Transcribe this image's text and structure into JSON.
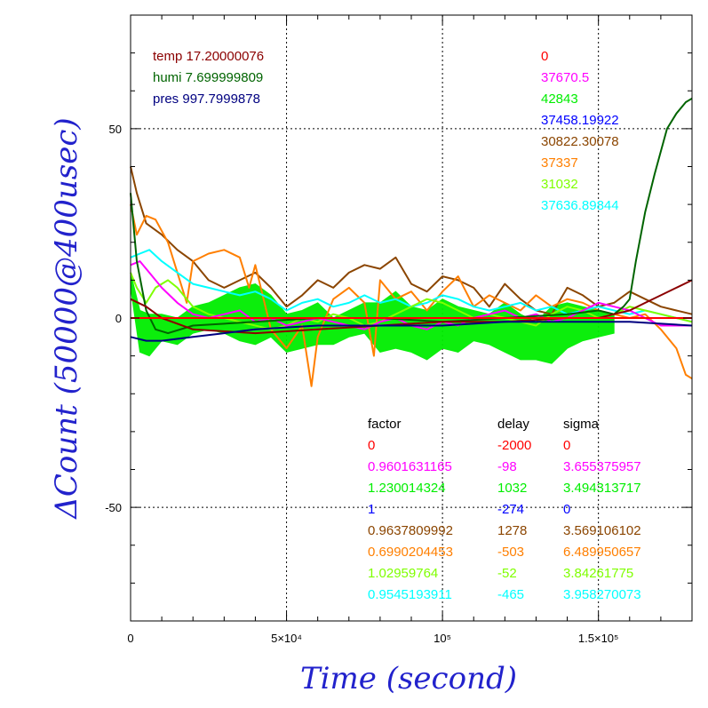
{
  "chart_data": {
    "type": "line",
    "xlabel": "Time (second)",
    "ylabel": "ΔCount (50000@400usec)",
    "xlim": [
      0,
      180000
    ],
    "ylim": [
      -80,
      80
    ],
    "x_ticks": [
      {
        "value": 0,
        "label": "0"
      },
      {
        "value": 50000,
        "label": "5×10⁴"
      },
      {
        "value": 100000,
        "label": "10⁵"
      },
      {
        "value": 150000,
        "label": "1.5×10⁵"
      }
    ],
    "y_ticks": [
      {
        "value": 50,
        "label": "50"
      },
      {
        "value": 0,
        "label": "0"
      },
      {
        "value": -50,
        "label": "-50"
      }
    ],
    "grid": true,
    "env_legend": [
      {
        "text": "temp 17.20000076",
        "color": "#8b0000"
      },
      {
        "text": "humi 7.699999809",
        "color": "#006400"
      },
      {
        "text": "pres 997.7999878",
        "color": "#000080"
      }
    ],
    "series_values": [
      {
        "text": "0",
        "color": "#ff0000"
      },
      {
        "text": "37670.5",
        "color": "#ff00ff"
      },
      {
        "text": "42843",
        "color": "#00ee00"
      },
      {
        "text": "37458.19922",
        "color": "#0000ff"
      },
      {
        "text": "30822.30078",
        "color": "#8b4500"
      },
      {
        "text": "37337",
        "color": "#ff7f00"
      },
      {
        "text": "31032",
        "color": "#7fff00"
      },
      {
        "text": "37636.89844",
        "color": "#00ffff"
      }
    ],
    "table": {
      "headers": [
        "factor",
        "delay",
        "sigma"
      ],
      "rows": [
        {
          "factor": "0",
          "delay": "-2000",
          "sigma": "0",
          "color": "#ff0000"
        },
        {
          "factor": "0.9601631165",
          "delay": "-98",
          "sigma": "3.655375957",
          "color": "#ff00ff"
        },
        {
          "factor": "1.230014324",
          "delay": "1032",
          "sigma": "3.494313717",
          "color": "#00ee00"
        },
        {
          "factor": "1",
          "delay": "-274",
          "sigma": "0",
          "color": "#0000ff"
        },
        {
          "factor": "0.9637809992",
          "delay": "1278",
          "sigma": "3.569106102",
          "color": "#8b4500"
        },
        {
          "factor": "0.6990204453",
          "delay": "-503",
          "sigma": "6.489950657",
          "color": "#ff7f00"
        },
        {
          "factor": "1.02959764",
          "delay": "-52",
          "sigma": "3.84261775",
          "color": "#7fff00"
        },
        {
          "factor": "0.9545193911",
          "delay": "-465",
          "sigma": "3.958270073",
          "color": "#00ffff"
        }
      ]
    },
    "series": [
      {
        "color": "#8b4500",
        "x": [
          0,
          2000,
          5000,
          10000,
          15000,
          20000,
          25000,
          30000,
          35000,
          40000,
          45000,
          50000,
          55000,
          60000,
          65000,
          70000,
          75000,
          80000,
          85000,
          90000,
          95000,
          100000,
          105000,
          110000,
          115000,
          120000,
          125000,
          130000,
          135000,
          140000,
          145000,
          150000,
          155000,
          160000,
          165000,
          170000,
          175000,
          180000
        ],
        "y": [
          40,
          33,
          25,
          22,
          18,
          15,
          10,
          8,
          10,
          12,
          8,
          3,
          6,
          10,
          8,
          12,
          14,
          13,
          16,
          9,
          7,
          11,
          10,
          8,
          3,
          9,
          5,
          2,
          1,
          8,
          6,
          3,
          4,
          7,
          5,
          3,
          2,
          1
        ]
      },
      {
        "color": "#ff7f00",
        "x": [
          0,
          2000,
          5000,
          8000,
          12000,
          15000,
          18000,
          20000,
          25000,
          30000,
          35000,
          38000,
          40000,
          45000,
          50000,
          55000,
          58000,
          60000,
          65000,
          70000,
          75000,
          78000,
          80000,
          85000,
          90000,
          95000,
          100000,
          105000,
          110000,
          115000,
          120000,
          125000,
          130000,
          135000,
          140000,
          145000,
          150000,
          155000,
          160000,
          165000,
          170000,
          175000,
          178000,
          180000
        ],
        "y": [
          30,
          22,
          27,
          26,
          20,
          12,
          4,
          15,
          17,
          18,
          16,
          8,
          14,
          -3,
          -8,
          -2,
          -18,
          -5,
          5,
          8,
          4,
          -10,
          10,
          5,
          7,
          2,
          7,
          11,
          3,
          6,
          4,
          2,
          6,
          3,
          5,
          4,
          2,
          1,
          0,
          1,
          -3,
          -8,
          -15,
          -16
        ]
      },
      {
        "color": "#00ffff",
        "x": [
          0,
          3000,
          6000,
          10000,
          15000,
          20000,
          25000,
          30000,
          35000,
          40000,
          45000,
          50000,
          55000,
          60000,
          65000,
          70000,
          75000,
          80000,
          85000,
          90000,
          95000,
          100000,
          105000,
          110000,
          115000,
          120000,
          125000,
          130000,
          135000,
          140000,
          145000,
          150000,
          155000,
          160000,
          165000,
          170000,
          175000,
          180000
        ],
        "y": [
          16,
          17,
          18,
          15,
          12,
          9,
          8,
          7,
          6,
          7,
          5,
          2,
          4,
          5,
          3,
          4,
          6,
          4,
          5,
          3,
          4,
          6,
          5,
          3,
          2,
          3,
          4,
          2,
          3,
          1,
          2,
          3,
          2,
          1,
          2,
          1,
          0,
          -1
        ]
      },
      {
        "color": "#7fff00",
        "x": [
          0,
          2000,
          5000,
          8000,
          12000,
          15000,
          20000,
          25000,
          30000,
          35000,
          40000,
          45000,
          50000,
          55000,
          60000,
          65000,
          70000,
          75000,
          80000,
          85000,
          90000,
          95000,
          100000,
          105000,
          110000,
          115000,
          120000,
          125000,
          130000,
          135000,
          140000,
          145000,
          150000,
          155000,
          160000,
          165000,
          170000,
          175000,
          180000
        ],
        "y": [
          12,
          8,
          4,
          8,
          10,
          8,
          3,
          1,
          0,
          -1,
          -2,
          -3,
          -2,
          0,
          -1,
          1,
          0,
          -2,
          -1,
          1,
          3,
          5,
          4,
          2,
          0,
          1,
          0,
          -1,
          -2,
          1,
          3,
          2,
          0,
          1,
          3,
          2,
          1,
          0,
          -1
        ]
      },
      {
        "color": "#ff00ff",
        "x": [
          0,
          3000,
          6000,
          10000,
          15000,
          20000,
          25000,
          30000,
          35000,
          40000,
          45000,
          50000,
          55000,
          60000,
          65000,
          70000,
          75000,
          80000,
          85000,
          90000,
          95000,
          100000,
          105000,
          110000,
          115000,
          120000,
          125000,
          130000,
          135000,
          140000,
          145000,
          150000,
          155000,
          160000,
          165000,
          170000,
          175000,
          180000
        ],
        "y": [
          14,
          15,
          12,
          8,
          4,
          1,
          0,
          1,
          2,
          -1,
          0,
          -2,
          -1,
          0,
          -1,
          -2,
          -3,
          -1,
          0,
          -2,
          -3,
          -1,
          -2,
          0,
          1,
          2,
          0,
          1,
          -1,
          0,
          2,
          4,
          3,
          2,
          0,
          -2,
          -2,
          -2
        ]
      },
      {
        "color": "#006400",
        "x": [
          0,
          2000,
          5000,
          8000,
          12000,
          20000,
          40000,
          60000,
          80000,
          100000,
          120000,
          140000,
          150000,
          155000,
          158000,
          160000,
          162000,
          165000,
          168000,
          170000,
          172000,
          175000,
          178000,
          180000
        ],
        "y": [
          33,
          15,
          2,
          -3,
          -4,
          -2,
          -1,
          0,
          0,
          -1,
          0,
          1,
          2,
          1,
          3,
          5,
          15,
          28,
          38,
          44,
          50,
          54,
          57,
          58
        ]
      },
      {
        "color": "#8b0000",
        "x": [
          0,
          5000,
          10000,
          20000,
          40000,
          60000,
          80000,
          100000,
          120000,
          140000,
          150000,
          155000,
          160000,
          165000,
          170000,
          175000,
          180000
        ],
        "y": [
          5,
          3,
          0,
          -3,
          -4,
          -3,
          -2,
          -1,
          -1,
          0,
          0,
          1,
          2,
          4,
          6,
          8,
          10
        ]
      },
      {
        "color": "#000080",
        "x": [
          0,
          5000,
          10000,
          20000,
          30000,
          40000,
          60000,
          80000,
          100000,
          120000,
          140000,
          160000,
          180000
        ],
        "y": [
          -5,
          -6,
          -6,
          -5,
          -4,
          -3,
          -2,
          -2,
          -2,
          -1,
          -1,
          -1,
          -2
        ]
      },
      {
        "color": "#ff0000",
        "x": [
          0,
          180000
        ],
        "y": [
          0,
          0
        ]
      }
    ],
    "green_band": {
      "color": "#00ee00",
      "x": [
        0,
        3000,
        6000,
        10000,
        15000,
        20000,
        25000,
        30000,
        35000,
        40000,
        45000,
        50000,
        55000,
        60000,
        65000,
        70000,
        75000,
        80000,
        85000,
        90000,
        95000,
        100000,
        105000,
        110000,
        115000,
        120000,
        125000,
        130000,
        135000,
        140000,
        145000,
        150000,
        155000
      ],
      "upper": [
        12,
        2,
        1,
        1,
        0,
        3,
        4,
        6,
        8,
        9,
        6,
        1,
        2,
        4,
        0,
        2,
        4,
        4,
        7,
        3,
        2,
        5,
        3,
        2,
        1,
        4,
        1,
        -1,
        3,
        4,
        3,
        2,
        1
      ],
      "lower": [
        8,
        -9,
        -10,
        -6,
        -7,
        -4,
        -3,
        -4,
        -6,
        -7,
        -5,
        -9,
        -8,
        -7,
        -7,
        -5,
        -4,
        -9,
        -8,
        -9,
        -11,
        -8,
        -9,
        -6,
        -7,
        -9,
        -11,
        -11,
        -12,
        -8,
        -6,
        -5,
        -4
      ]
    }
  }
}
